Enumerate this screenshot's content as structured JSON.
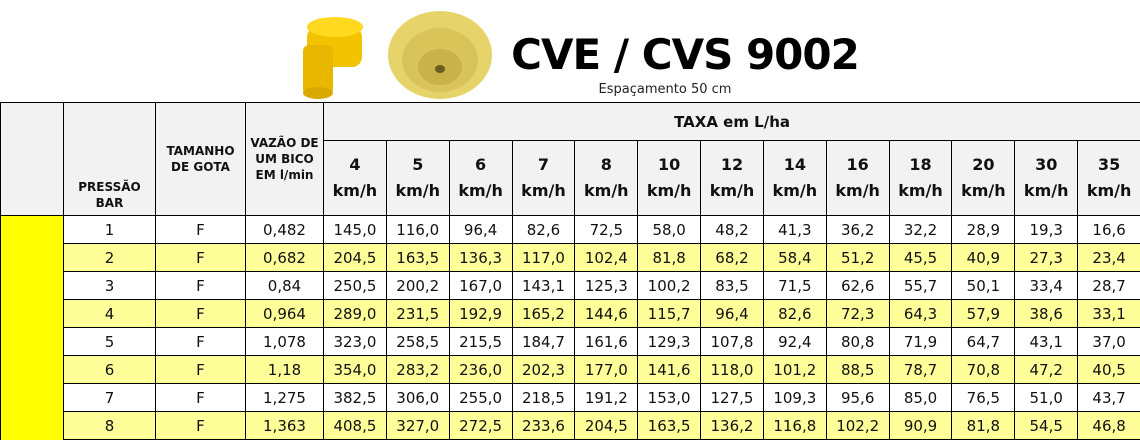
{
  "header": {
    "title": "CVE / CVS 9002",
    "subtitle": "Espaçamento 50 cm"
  },
  "table": {
    "group_header": "TAXA em L/ha",
    "columns": [
      "PRESSÃO\nBAR",
      "TAMANHO\nDE GOTA",
      "VAZÃO DE\nUM BICO\nEM l/min"
    ],
    "speeds": [
      "4\nkm/h",
      "5\nkm/h",
      "6\nkm/h",
      "7\nkm/h",
      "8\nkm/h",
      "10\nkm/h",
      "12\nkm/h",
      "14\nkm/h",
      "16\nkm/h",
      "18\nkm/h",
      "20\nkm/h",
      "30\nkm/h",
      "35\nkm/h"
    ],
    "rows": [
      [
        "1",
        "F",
        "0,482",
        "145,0",
        "116,0",
        "96,4",
        "82,6",
        "72,5",
        "58,0",
        "48,2",
        "41,3",
        "36,2",
        "32,2",
        "28,9",
        "19,3",
        "16,6"
      ],
      [
        "2",
        "F",
        "0,682",
        "204,5",
        "163,5",
        "136,3",
        "117,0",
        "102,4",
        "81,8",
        "68,2",
        "58,4",
        "51,2",
        "45,5",
        "40,9",
        "27,3",
        "23,4"
      ],
      [
        "3",
        "F",
        "0,84",
        "250,5",
        "200,2",
        "167,0",
        "143,1",
        "125,3",
        "100,2",
        "83,5",
        "71,5",
        "62,6",
        "55,7",
        "50,1",
        "33,4",
        "28,7"
      ],
      [
        "4",
        "F",
        "0,964",
        "289,0",
        "231,5",
        "192,9",
        "165,2",
        "144,6",
        "115,7",
        "96,4",
        "82,6",
        "72,3",
        "64,3",
        "57,9",
        "38,6",
        "33,1"
      ],
      [
        "5",
        "F",
        "1,078",
        "323,0",
        "258,5",
        "215,5",
        "184,7",
        "161,6",
        "129,3",
        "107,8",
        "92,4",
        "80,8",
        "71,9",
        "64,7",
        "43,1",
        "37,0"
      ],
      [
        "6",
        "F",
        "1,18",
        "354,0",
        "283,2",
        "236,0",
        "202,3",
        "177,0",
        "141,6",
        "118,0",
        "101,2",
        "88,5",
        "78,7",
        "70,8",
        "47,2",
        "40,5"
      ],
      [
        "7",
        "F",
        "1,275",
        "382,5",
        "306,0",
        "255,0",
        "218,5",
        "191,2",
        "153,0",
        "127,5",
        "109,3",
        "95,6",
        "85,0",
        "76,5",
        "51,0",
        "43,7"
      ],
      [
        "8",
        "F",
        "1,363",
        "408,5",
        "327,0",
        "272,5",
        "233,6",
        "204,5",
        "163,5",
        "136,2",
        "116,8",
        "102,2",
        "90,9",
        "81,8",
        "54,5",
        "46,8"
      ]
    ]
  }
}
